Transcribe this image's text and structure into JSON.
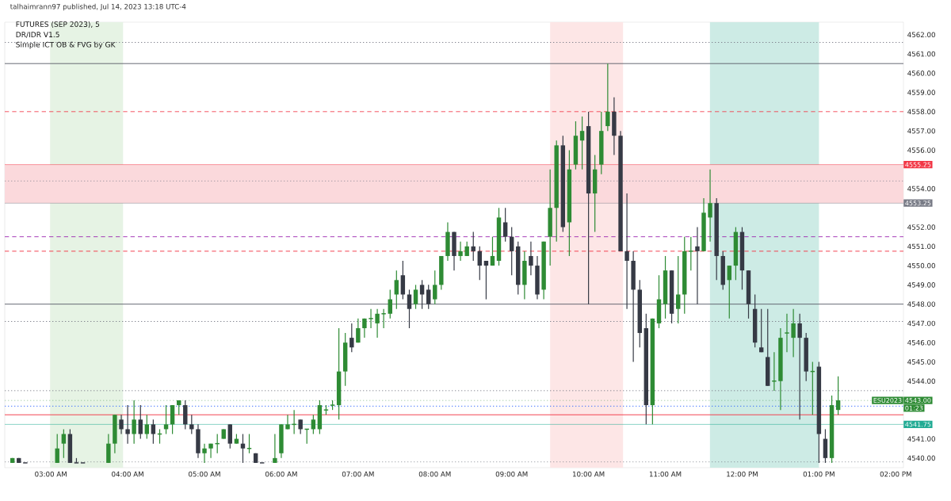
{
  "chart_data": {
    "type": "candlestick",
    "title": "FUTURES (SEP 2023), 5",
    "annotations": [
      "talhaimrann97 published, Jul 14, 2023 13:18 UTC-4",
      "DR/IDR V1.5",
      "Simple ICT OB & FVG by GK",
      "ESU2023",
      "01:23"
    ],
    "xlim": [
      2.4,
      14.1
    ],
    "ylim": [
      4539.5,
      4562.65
    ],
    "xticks": [
      {
        "value": 3,
        "label": "03:00 AM"
      },
      {
        "value": 4,
        "label": "04:00 AM"
      },
      {
        "value": 5,
        "label": "05:00 AM"
      },
      {
        "value": 6,
        "label": "06:00 AM"
      },
      {
        "value": 7,
        "label": "07:00 AM"
      },
      {
        "value": 8,
        "label": "08:00 AM"
      },
      {
        "value": 9,
        "label": "09:00 AM"
      },
      {
        "value": 10,
        "label": "10:00 AM"
      },
      {
        "value": 11,
        "label": "11:00 AM"
      },
      {
        "value": 12,
        "label": "12:00 PM"
      },
      {
        "value": 13,
        "label": "01:00 PM"
      },
      {
        "value": 14,
        "label": "02:00 PM"
      }
    ],
    "yticks": [
      {
        "value": 4540,
        "label": "4540.00"
      },
      {
        "value": 4541,
        "label": "4541.00"
      },
      {
        "value": 4544,
        "label": "4544.00"
      },
      {
        "value": 4545,
        "label": "4545.00"
      },
      {
        "value": 4546,
        "label": "4546.00"
      },
      {
        "value": 4547,
        "label": "4547.00"
      },
      {
        "value": 4548,
        "label": "4548.00"
      },
      {
        "value": 4549,
        "label": "4549.00"
      },
      {
        "value": 4550,
        "label": "4550.00"
      },
      {
        "value": 4551,
        "label": "4551.00"
      },
      {
        "value": 4552,
        "label": "4552.00"
      },
      {
        "value": 4554,
        "label": "4554.00"
      },
      {
        "value": 4556,
        "label": "4556.00"
      },
      {
        "value": 4557,
        "label": "4557.00"
      },
      {
        "value": 4558,
        "label": "4558.00"
      },
      {
        "value": 4559,
        "label": "4559.00"
      },
      {
        "value": 4560,
        "label": "4560.00"
      },
      {
        "value": 4561,
        "label": "4561.00"
      },
      {
        "value": 4562,
        "label": "4562.00"
      }
    ],
    "bands": [
      {
        "axis": "x",
        "from": 2.99,
        "to": 3.94,
        "color": "#e6f3e4"
      },
      {
        "axis": "x",
        "from": 9.5,
        "to": 10.45,
        "color": "#fde6e6"
      },
      {
        "axis": "x",
        "from": 11.58,
        "to": 13.0,
        "color": "#cdebe5"
      },
      {
        "axis": "y",
        "from": 4553.25,
        "to": 4555.25,
        "color": "#fbd9dc"
      }
    ],
    "ref_lines": [
      {
        "axis": "y",
        "value": 4561.6,
        "color": "#787b86",
        "line_style": "dotted"
      },
      {
        "axis": "y",
        "value": 4560.5,
        "color": "#5d606b",
        "line_style": "solid"
      },
      {
        "axis": "y",
        "value": 4558,
        "color": "#f23645",
        "line_style": "dashed"
      },
      {
        "axis": "y",
        "value": 4555.25,
        "color": "#f23645",
        "line_style": "solid",
        "label": "4555.25"
      },
      {
        "axis": "y",
        "value": 4554.4,
        "color": "#787b86",
        "line_style": "dotted"
      },
      {
        "axis": "y",
        "value": 4553.25,
        "color": "#787b86",
        "line_style": "solid",
        "label": "4553.25"
      },
      {
        "axis": "y",
        "value": 4551.5,
        "color": "#9c27b0",
        "line_style": "dashed"
      },
      {
        "axis": "y",
        "value": 4550.75,
        "color": "#f23645",
        "line_style": "dashed"
      },
      {
        "axis": "y",
        "value": 4548,
        "color": "#5d606b",
        "line_style": "solid"
      },
      {
        "axis": "y",
        "value": 4547.1,
        "color": "#787b86",
        "line_style": "dotted"
      },
      {
        "axis": "y",
        "value": 4543.5,
        "color": "#787b86",
        "line_style": "dotted"
      },
      {
        "axis": "y",
        "value": 4543.0,
        "color": "#2e8b34",
        "line_style": "dotted",
        "label": "4543.00"
      },
      {
        "axis": "y",
        "value": 4542.7,
        "color": "#2962ff",
        "line_style": "dotted"
      },
      {
        "axis": "y",
        "value": 4542.25,
        "color": "#f23645",
        "line_style": "solid"
      },
      {
        "axis": "y",
        "value": 4541.75,
        "color": "#22ab94",
        "line_style": "solid",
        "label": "4541.75"
      },
      {
        "axis": "y",
        "value": 4539.8,
        "color": "#787b86",
        "line_style": "dotted"
      }
    ],
    "series": [
      {
        "color": "#2e8b34",
        "x": [
          2.5,
          3.083,
          3.167,
          3.75,
          3.833,
          4.083,
          4.25,
          4.417,
          4.5,
          4.583,
          4.667,
          5.0,
          5.083,
          5.167,
          5.25,
          5.417,
          5.583,
          5.917,
          6.0,
          6.083,
          6.167,
          6.333,
          6.417,
          6.5,
          6.583,
          6.667,
          6.75,
          6.833,
          7.0,
          7.083,
          7.167,
          7.25,
          7.333,
          7.417,
          7.5,
          7.75,
          8.0,
          8.083,
          8.167,
          8.333,
          8.417,
          8.75,
          8.833,
          9.167,
          9.417,
          9.5,
          9.583,
          9.75,
          9.833,
          9.917,
          10.083,
          10.167,
          10.25,
          10.833,
          10.917,
          11.0,
          11.167,
          11.25,
          11.333,
          11.5,
          11.583,
          11.833,
          11.917,
          12.417,
          12.5,
          12.583,
          12.667,
          12.917,
          13.167,
          13.25
        ],
        "ohlc": [
          [
            4539.75,
            4540,
            4539.75,
            4540
          ],
          [
            4539.75,
            4541.25,
            4539.75,
            4540.5
          ],
          [
            4540.75,
            4541.5,
            4540,
            4541.25
          ],
          [
            4539.75,
            4541.25,
            4539.75,
            4540.75
          ],
          [
            4540.75,
            4542.25,
            4540.25,
            4542.25
          ],
          [
            4541.25,
            4543,
            4540.75,
            4542
          ],
          [
            4541.25,
            4542.25,
            4541,
            4541.75
          ],
          [
            4541.25,
            4541.5,
            4540.75,
            4541.25
          ],
          [
            4541.5,
            4542.75,
            4541.25,
            4541.75
          ],
          [
            4541.75,
            4542.75,
            4541.25,
            4542.75
          ],
          [
            4542.75,
            4543,
            4542.25,
            4543
          ],
          [
            4540.25,
            4540.75,
            4539.75,
            4540.5
          ],
          [
            4540.5,
            4540.75,
            4540,
            4540.75
          ],
          [
            4540.75,
            4541.25,
            4540.25,
            4540.75
          ],
          [
            4541,
            4541.5,
            4541,
            4541.5
          ],
          [
            4540.75,
            4541.25,
            4540.75,
            4541
          ],
          [
            4540.5,
            4541.25,
            4540.25,
            4540.5
          ],
          [
            4539.75,
            4541.25,
            4539.75,
            4540
          ],
          [
            4540.25,
            4541.75,
            4540,
            4541.75
          ],
          [
            4541.5,
            4542.25,
            4541.5,
            4541.75
          ],
          [
            4541.75,
            4542.5,
            4541.25,
            4541.75
          ],
          [
            4541.5,
            4541.5,
            4540.75,
            4541.5
          ],
          [
            4541.5,
            4542.25,
            4541.25,
            4542
          ],
          [
            4541.5,
            4543,
            4541.25,
            4542.75
          ],
          [
            4542.5,
            4542.75,
            4542.25,
            4542.5
          ],
          [
            4542.75,
            4543,
            4542.5,
            4542.75
          ],
          [
            4542.75,
            4546.75,
            4542,
            4544.5
          ],
          [
            4544.5,
            4546.5,
            4543.75,
            4546
          ],
          [
            4546,
            4547.25,
            4546,
            4546.75
          ],
          [
            4546.75,
            4547.25,
            4546.25,
            4547.25
          ],
          [
            4547.25,
            4547.75,
            4546.75,
            4547.25
          ],
          [
            4547,
            4547.75,
            4546.25,
            4547.5
          ],
          [
            4547.5,
            4547.75,
            4546.75,
            4547.5
          ],
          [
            4547.5,
            4548.75,
            4547.25,
            4548.25
          ],
          [
            4548.5,
            4549.75,
            4547.75,
            4549.25
          ],
          [
            4548,
            4549,
            4547.75,
            4548.75
          ],
          [
            4548.25,
            4549.75,
            4548,
            4549
          ],
          [
            4549,
            4550.5,
            4548.75,
            4550.5
          ],
          [
            4550.5,
            4552.25,
            4550.25,
            4551.75
          ],
          [
            4550.5,
            4551.25,
            4550.25,
            4550.75
          ],
          [
            4550.5,
            4551.25,
            4550.5,
            4551
          ],
          [
            4550,
            4551.5,
            4550,
            4550.5
          ],
          [
            4550.25,
            4553,
            4550,
            4552.5
          ],
          [
            4549,
            4550.75,
            4548.25,
            4550.25
          ],
          [
            4548.75,
            4551.25,
            4548.25,
            4551.25
          ],
          [
            4551.5,
            4555,
            4550,
            4553
          ],
          [
            4553,
            4556.5,
            4551.25,
            4556.25
          ],
          [
            4552.25,
            4556,
            4550.5,
            4555
          ],
          [
            4555.25,
            4557.5,
            4555,
            4556.75
          ],
          [
            4556.5,
            4557.75,
            4555,
            4557
          ],
          [
            4553.75,
            4555.75,
            4551.75,
            4555
          ],
          [
            4555.25,
            4558,
            4554.75,
            4557
          ],
          [
            4557.25,
            4560.5,
            4557,
            4558
          ],
          [
            4542.75,
            4547.25,
            4541.75,
            4547.25
          ],
          [
            4547,
            4549.5,
            4546.75,
            4548.25
          ],
          [
            4548,
            4550.5,
            4547.25,
            4549.75
          ],
          [
            4547.75,
            4550.5,
            4547,
            4548.5
          ],
          [
            4548.5,
            4551.5,
            4547.5,
            4550.75
          ],
          [
            4550.75,
            4551.5,
            4549.75,
            4550.75
          ],
          [
            4550.75,
            4553.5,
            4550.75,
            4552.75
          ],
          [
            4552.5,
            4555,
            4551.25,
            4553.25
          ],
          [
            4549.25,
            4550,
            4547.25,
            4550
          ],
          [
            4550,
            4552,
            4549.25,
            4551.75
          ],
          [
            4544,
            4545.5,
            4543.5,
            4544
          ],
          [
            4544,
            4546.75,
            4542.5,
            4546.25
          ],
          [
            4546.5,
            4547.5,
            4545.5,
            4546.5
          ],
          [
            4546.25,
            4547.75,
            4545.25,
            4547
          ],
          [
            4544.5,
            4545,
            4542.25,
            4544.5
          ],
          [
            4540,
            4543.25,
            4539.75,
            4542.75
          ],
          [
            4542.5,
            4544.25,
            4542.25,
            4543
          ]
        ]
      },
      {
        "color": "#363a45",
        "x": [
          2.583,
          2.667,
          3.25,
          3.333,
          3.417,
          3.917,
          4.0,
          4.167,
          4.333,
          4.75,
          4.833,
          4.917,
          5.333,
          5.5,
          5.667,
          5.75,
          6.25,
          6.917,
          7.583,
          7.667,
          7.833,
          7.917,
          8.25,
          8.5,
          8.583,
          8.667,
          8.917,
          9.0,
          9.083,
          9.25,
          9.333,
          9.667,
          10.0,
          10.333,
          10.417,
          10.5,
          10.583,
          10.667,
          10.75,
          11.083,
          11.417,
          11.667,
          11.75,
          12.0,
          12.083,
          12.167,
          12.25,
          12.333,
          12.75,
          12.833,
          13.0,
          13.083
        ],
        "ohlc": [
          [
            4540,
            4540,
            4539.75,
            4539.75
          ],
          [
            4539.75,
            4539.75,
            4539.75,
            4539.75
          ],
          [
            4541.25,
            4541.5,
            4539.75,
            4539.75
          ],
          [
            4539.75,
            4540,
            4539.75,
            4539.75
          ],
          [
            4539.75,
            4539.75,
            4539.75,
            4539.75
          ],
          [
            4542,
            4542.25,
            4541.25,
            4541.5
          ],
          [
            4541.5,
            4542.75,
            4540.75,
            4541.25
          ],
          [
            4542,
            4542.75,
            4541,
            4541.25
          ],
          [
            4541.75,
            4542,
            4540.75,
            4541.25
          ],
          [
            4542.75,
            4543,
            4541.5,
            4541.75
          ],
          [
            4541.75,
            4542.25,
            4541.25,
            4541.5
          ],
          [
            4541.5,
            4541.75,
            4540,
            4540.25
          ],
          [
            4541.75,
            4541.75,
            4540.5,
            4540.75
          ],
          [
            4540.75,
            4541.25,
            4539.75,
            4540.5
          ],
          [
            4540.25,
            4540.25,
            4539.75,
            4539.75
          ],
          [
            4539.75,
            4539.75,
            4539.75,
            4539.75
          ],
          [
            4542,
            4542,
            4541.25,
            4541.5
          ],
          [
            4546.25,
            4547,
            4545.5,
            4545.75
          ],
          [
            4549.5,
            4550.25,
            4548.25,
            4548.5
          ],
          [
            4548.5,
            4548.75,
            4546.75,
            4547.75
          ],
          [
            4549,
            4549.25,
            4547.75,
            4548.5
          ],
          [
            4548.75,
            4549,
            4547.75,
            4548
          ],
          [
            4551.75,
            4551.75,
            4549.75,
            4550.5
          ],
          [
            4551,
            4551.75,
            4550.25,
            4550.75
          ],
          [
            4550.75,
            4551,
            4549.25,
            4550
          ],
          [
            4550.25,
            4550.25,
            4548.25,
            4550
          ],
          [
            4552.25,
            4553,
            4551.25,
            4551.5
          ],
          [
            4551.5,
            4552,
            4549.5,
            4550.75
          ],
          [
            4551,
            4551.25,
            4548.5,
            4549
          ],
          [
            4550.5,
            4551.25,
            4549.5,
            4550
          ],
          [
            4550,
            4550.5,
            4548.25,
            4548.5
          ],
          [
            4556.25,
            4556.75,
            4551.75,
            4552
          ],
          [
            4557.25,
            4558,
            4548,
            4553.75
          ],
          [
            4558,
            4558.75,
            4555.75,
            4556.75
          ],
          [
            4556.75,
            4557,
            4550.75,
            4550.75
          ],
          [
            4550.75,
            4553.75,
            4547.75,
            4550.25
          ],
          [
            4550.25,
            4550.75,
            4545,
            4548.75
          ],
          [
            4548.75,
            4549.25,
            4545.75,
            4546.5
          ],
          [
            4546.75,
            4547.5,
            4541.75,
            4542.75
          ],
          [
            4549.75,
            4549.75,
            4547,
            4547.5
          ],
          [
            4551,
            4552,
            4548,
            4550.75
          ],
          [
            4553.25,
            4553.5,
            4549.25,
            4550.5
          ],
          [
            4550.5,
            4550.75,
            4548.75,
            4549
          ],
          [
            4551.75,
            4552,
            4548.75,
            4549.75
          ],
          [
            4549.75,
            4549.75,
            4547.25,
            4548
          ],
          [
            4547.75,
            4548.5,
            4545.75,
            4546
          ],
          [
            4545.75,
            4547.75,
            4545.5,
            4545.5
          ],
          [
            4545.25,
            4547.75,
            4543.75,
            4543.75
          ],
          [
            4547,
            4547.5,
            4542,
            4546.25
          ],
          [
            4546.25,
            4546.5,
            4544,
            4544.5
          ],
          [
            4544.75,
            4545,
            4539.75,
            4541.25
          ],
          [
            4541,
            4541.5,
            4539.75,
            4540
          ]
        ]
      }
    ]
  }
}
